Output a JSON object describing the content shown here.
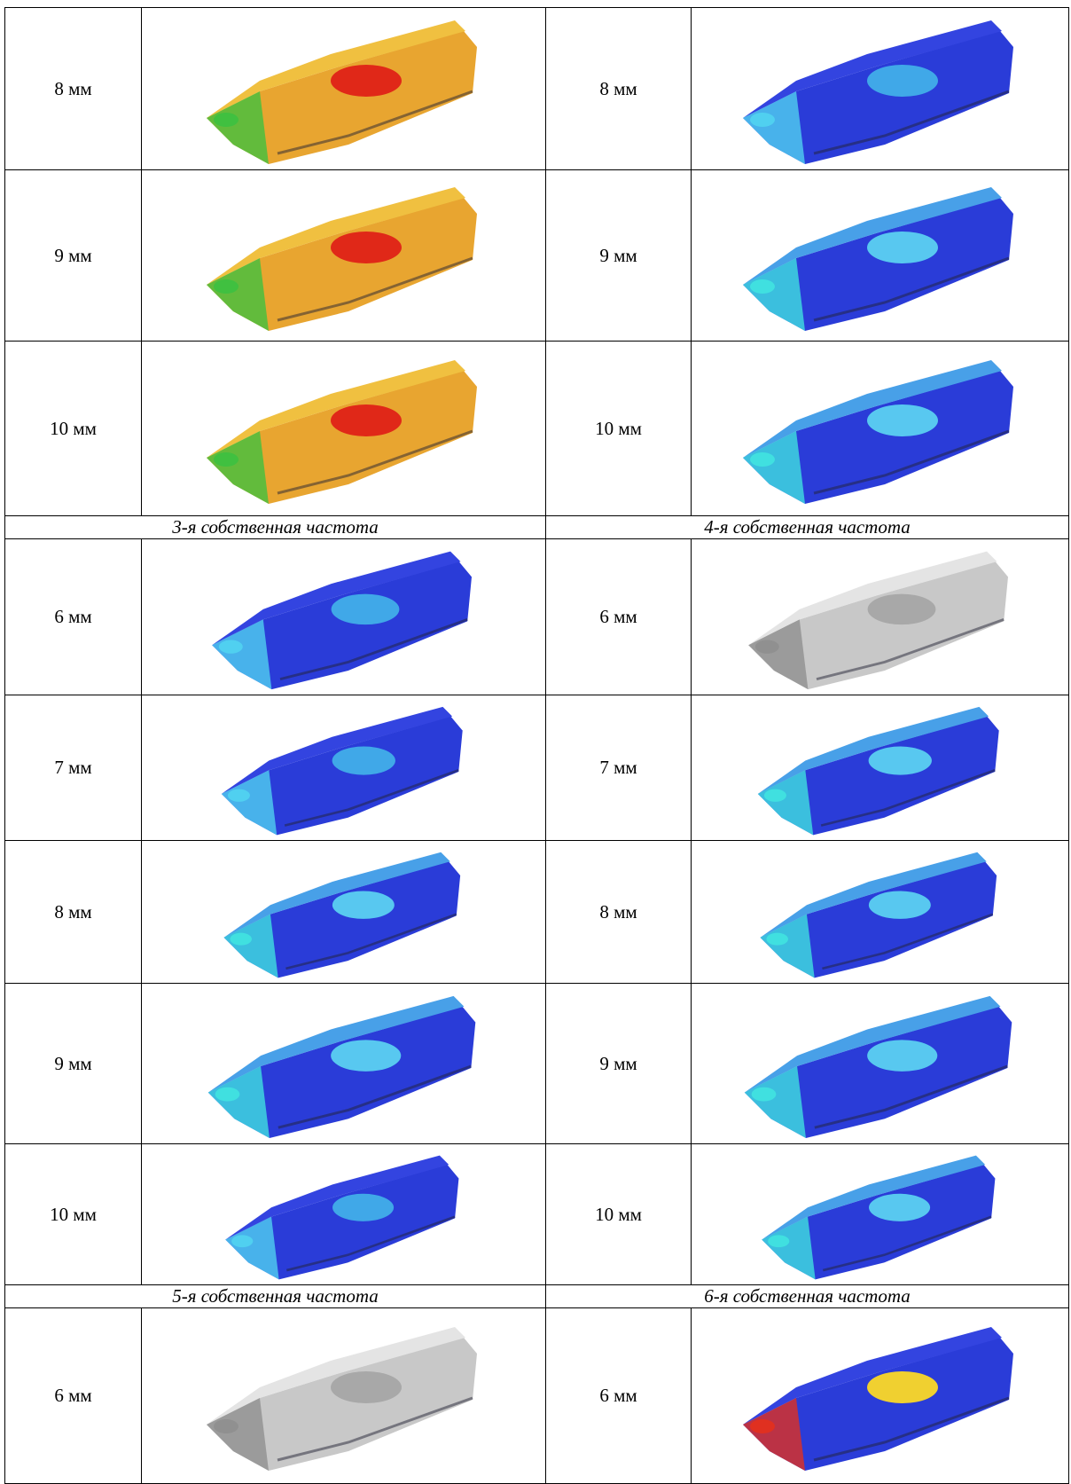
{
  "sections": [
    {
      "rows": [
        [
          "8 мм",
          "8 мм"
        ],
        [
          "9 мм",
          "9 мм"
        ],
        [
          "10 мм",
          "10 мм"
        ]
      ]
    },
    {
      "captions": [
        "3-я собственная частота",
        "4-я собственная частота"
      ],
      "rows": [
        [
          "6 мм",
          "6 мм"
        ],
        [
          "7 мм",
          "7 мм"
        ],
        [
          "8 мм",
          "8 мм"
        ],
        [
          "9 мм",
          "9 мм"
        ],
        [
          "10 мм",
          "10 мм"
        ]
      ]
    },
    {
      "captions": [
        "5-я собственная частота",
        "6-я собственная частота"
      ],
      "rows": [
        [
          "6 мм",
          "6 мм"
        ]
      ]
    }
  ]
}
